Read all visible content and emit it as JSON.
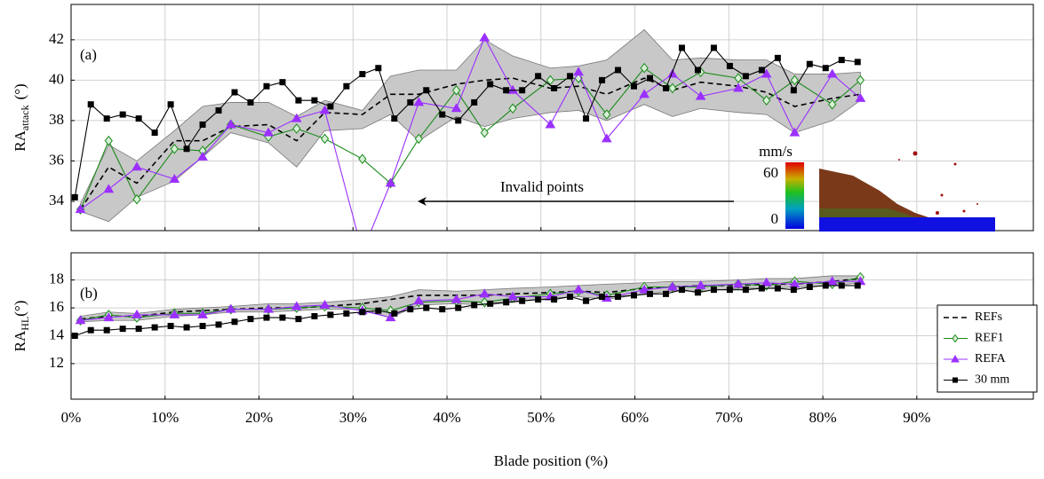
{
  "chart_data": [
    {
      "type": "line",
      "label": "(a)",
      "ylabel": {
        "main": "RA",
        "sub": "attack",
        "unit": "(°)"
      },
      "xlim": [
        0,
        102.4
      ],
      "ylim": [
        32.55,
        43.75
      ],
      "yticks": [
        34,
        36,
        38,
        40,
        42
      ],
      "grid": true,
      "x": [
        1,
        4,
        7,
        11,
        14,
        17,
        21,
        24,
        27,
        31,
        34,
        37,
        41,
        44,
        47,
        51,
        54,
        57,
        61,
        64,
        67,
        71,
        74,
        77,
        81,
        84
      ],
      "band": {
        "color": "#c8c8c8",
        "upper": [
          33.9,
          36.8,
          36.0,
          37.5,
          38.7,
          38.9,
          38.9,
          38.2,
          39.0,
          38.5,
          40.2,
          40.5,
          40.5,
          42.0,
          41.2,
          40.6,
          40.7,
          41.0,
          42.5,
          41.0,
          41.1,
          41.0,
          41.0,
          40.3,
          40.3,
          40.4
        ],
        "lower": [
          33.5,
          33.0,
          34.2,
          35.0,
          36.2,
          37.4,
          36.9,
          35.7,
          37.5,
          37.6,
          38.3,
          37.0,
          38.2,
          37.7,
          38.1,
          38.4,
          38.5,
          38.0,
          38.8,
          38.2,
          38.6,
          38.4,
          38.3,
          37.4,
          38.0,
          39.0
        ]
      },
      "series": [
        {
          "color": "#000000",
          "dash": true,
          "marker": "none",
          "values": [
            33.6,
            35.7,
            34.9,
            37.0,
            37.0,
            37.7,
            37.8,
            37.0,
            38.4,
            38.3,
            39.3,
            39.3,
            39.8,
            40.0,
            40.1,
            39.6,
            39.7,
            39.3,
            40.1,
            39.5,
            39.9,
            39.7,
            39.4,
            38.7,
            39.1,
            39.3
          ]
        },
        {
          "color": "#1a8a1a",
          "marker": "diamond",
          "values": [
            33.6,
            37.0,
            34.1,
            36.6,
            36.5,
            37.8,
            37.2,
            37.6,
            37.1,
            36.1,
            34.9,
            37.1,
            39.5,
            37.4,
            38.6,
            40.0,
            40.1,
            38.3,
            40.6,
            39.6,
            40.4,
            40.1,
            39.0,
            40.0,
            38.8,
            40.0
          ]
        },
        {
          "color": "#9b30ff",
          "marker": "triangle",
          "values": [
            33.6,
            34.6,
            35.7,
            35.1,
            36.2,
            37.8,
            37.4,
            38.1,
            38.5,
            31.5,
            34.9,
            38.9,
            38.6,
            42.1,
            39.5,
            37.8,
            40.4,
            37.1,
            39.3,
            40.3,
            39.2,
            39.6,
            40.3,
            37.4,
            40.3,
            39.1
          ]
        },
        {
          "color": "#000000",
          "marker": "square",
          "x": [
            0.4,
            2.1,
            3.8,
            5.5,
            7.2,
            8.9,
            10.6,
            12.3,
            14.0,
            15.7,
            17.4,
            19.1,
            20.8,
            22.5,
            24.2,
            25.9,
            27.6,
            29.3,
            31.0,
            32.7,
            34.4,
            36.1,
            37.8,
            39.5,
            41.2,
            42.9,
            44.6,
            46.3,
            48.0,
            49.7,
            51.4,
            53.1,
            54.8,
            56.5,
            58.2,
            59.9,
            61.6,
            63.3,
            65.0,
            66.7,
            68.4,
            70.1,
            71.8,
            73.5,
            75.2,
            76.9,
            78.6,
            80.3,
            82.0,
            83.7
          ],
          "values": [
            34.2,
            38.8,
            38.1,
            38.3,
            38.1,
            37.4,
            38.8,
            36.6,
            37.8,
            38.5,
            39.4,
            38.9,
            39.7,
            39.9,
            39.0,
            39.0,
            38.7,
            39.7,
            40.3,
            40.6,
            38.1,
            38.9,
            39.5,
            38.3,
            38.0,
            38.9,
            39.8,
            39.5,
            39.5,
            40.2,
            39.6,
            40.2,
            38.1,
            40.0,
            40.5,
            39.7,
            40.1,
            39.6,
            41.6,
            40.5,
            41.6,
            40.7,
            40.2,
            40.5,
            41.1,
            39.5,
            40.8,
            40.6,
            41.0,
            40.9
          ]
        }
      ],
      "annotation": "Invalid points",
      "inset": {
        "unit": "mm/s",
        "ticks": [
          60,
          0
        ]
      }
    },
    {
      "type": "line",
      "label": "(b)",
      "ylabel": {
        "main": "RA",
        "sub": "HL",
        "unit": "(°)"
      },
      "xlabel": "Blade position (%)",
      "xlim": [
        0,
        102.4
      ],
      "ylim": [
        9.45,
        19.95
      ],
      "yticks": [
        12,
        14,
        16,
        18
      ],
      "grid": true,
      "xticks": [
        {
          "value": 0,
          "label": "0%"
        },
        {
          "value": 10,
          "label": "10%"
        },
        {
          "value": 20,
          "label": "20%"
        },
        {
          "value": 30,
          "label": "30%"
        },
        {
          "value": 40,
          "label": "40%"
        },
        {
          "value": 50,
          "label": "50%"
        },
        {
          "value": 60,
          "label": "60%"
        },
        {
          "value": 70,
          "label": "70%"
        },
        {
          "value": 80,
          "label": "80%"
        },
        {
          "value": 90,
          "label": "90%"
        }
      ],
      "legend": "lower right",
      "x": [
        1,
        4,
        7,
        11,
        14,
        17,
        21,
        24,
        27,
        31,
        34,
        37,
        41,
        44,
        47,
        51,
        54,
        57,
        61,
        64,
        67,
        71,
        74,
        77,
        81,
        84
      ],
      "band": {
        "color": "#c8c8c8",
        "upper": [
          15.4,
          15.7,
          15.6,
          15.9,
          16.0,
          16.1,
          16.3,
          16.3,
          16.4,
          16.6,
          16.8,
          17.3,
          17.2,
          17.3,
          17.4,
          17.5,
          17.6,
          17.7,
          17.8,
          17.9,
          17.9,
          18.0,
          18.1,
          18.1,
          18.3,
          18.3
        ],
        "lower": [
          15.0,
          15.1,
          15.1,
          15.4,
          15.5,
          15.7,
          15.7,
          15.8,
          15.9,
          15.9,
          15.3,
          16.2,
          16.3,
          16.2,
          16.4,
          16.7,
          16.8,
          16.6,
          17.0,
          17.2,
          17.2,
          17.4,
          17.4,
          17.5,
          17.6,
          17.8
        ]
      },
      "series": [
        {
          "name": "REFs",
          "color": "#000000",
          "dash": true,
          "marker": "none",
          "values": [
            15.2,
            15.4,
            15.4,
            15.7,
            15.8,
            15.9,
            16.0,
            16.0,
            16.1,
            16.3,
            16.6,
            16.9,
            16.9,
            16.9,
            17.0,
            17.1,
            17.2,
            17.1,
            17.4,
            17.5,
            17.6,
            17.6,
            17.7,
            17.7,
            17.9,
            18.1
          ]
        },
        {
          "name": "REF1",
          "color": "#1a8a1a",
          "marker": "diamond",
          "values": [
            15.1,
            15.5,
            15.3,
            15.6,
            15.6,
            15.9,
            15.9,
            16.0,
            16.1,
            16.0,
            15.8,
            16.4,
            16.5,
            16.4,
            16.7,
            17.0,
            17.2,
            16.9,
            17.5,
            17.5,
            17.5,
            17.7,
            17.6,
            17.9,
            17.7,
            18.2
          ]
        },
        {
          "name": "REFA",
          "color": "#9b30ff",
          "marker": "triangle",
          "values": [
            15.1,
            15.3,
            15.5,
            15.5,
            15.5,
            15.9,
            15.9,
            16.1,
            16.2,
            15.8,
            15.3,
            16.5,
            16.6,
            17.0,
            16.8,
            16.8,
            17.3,
            16.7,
            17.3,
            17.5,
            17.6,
            17.7,
            17.8,
            17.7,
            17.9,
            17.9
          ]
        },
        {
          "name": "30 mm",
          "color": "#000000",
          "marker": "square",
          "x": [
            0.4,
            2.1,
            3.8,
            5.5,
            7.2,
            8.9,
            10.6,
            12.3,
            14.0,
            15.7,
            17.4,
            19.1,
            20.8,
            22.5,
            24.2,
            25.9,
            27.6,
            29.3,
            31.0,
            32.7,
            34.4,
            36.1,
            37.8,
            39.5,
            41.2,
            42.9,
            44.6,
            46.3,
            48.0,
            49.7,
            51.4,
            53.1,
            54.8,
            56.5,
            58.2,
            59.9,
            61.6,
            63.3,
            65.0,
            66.7,
            68.4,
            70.1,
            71.8,
            73.5,
            75.2,
            76.9,
            78.6,
            80.3,
            82.0,
            83.7
          ],
          "values": [
            14.0,
            14.4,
            14.4,
            14.5,
            14.5,
            14.6,
            14.7,
            14.6,
            14.7,
            14.8,
            15.0,
            15.2,
            15.3,
            15.3,
            15.2,
            15.4,
            15.5,
            15.6,
            15.7,
            15.8,
            15.6,
            15.9,
            16.0,
            15.9,
            16.0,
            16.2,
            16.3,
            16.4,
            16.5,
            16.6,
            16.6,
            16.8,
            16.5,
            16.8,
            16.8,
            16.9,
            17.0,
            17.0,
            17.3,
            17.1,
            17.3,
            17.3,
            17.3,
            17.4,
            17.4,
            17.3,
            17.5,
            17.6,
            17.6,
            17.6
          ]
        }
      ]
    }
  ]
}
